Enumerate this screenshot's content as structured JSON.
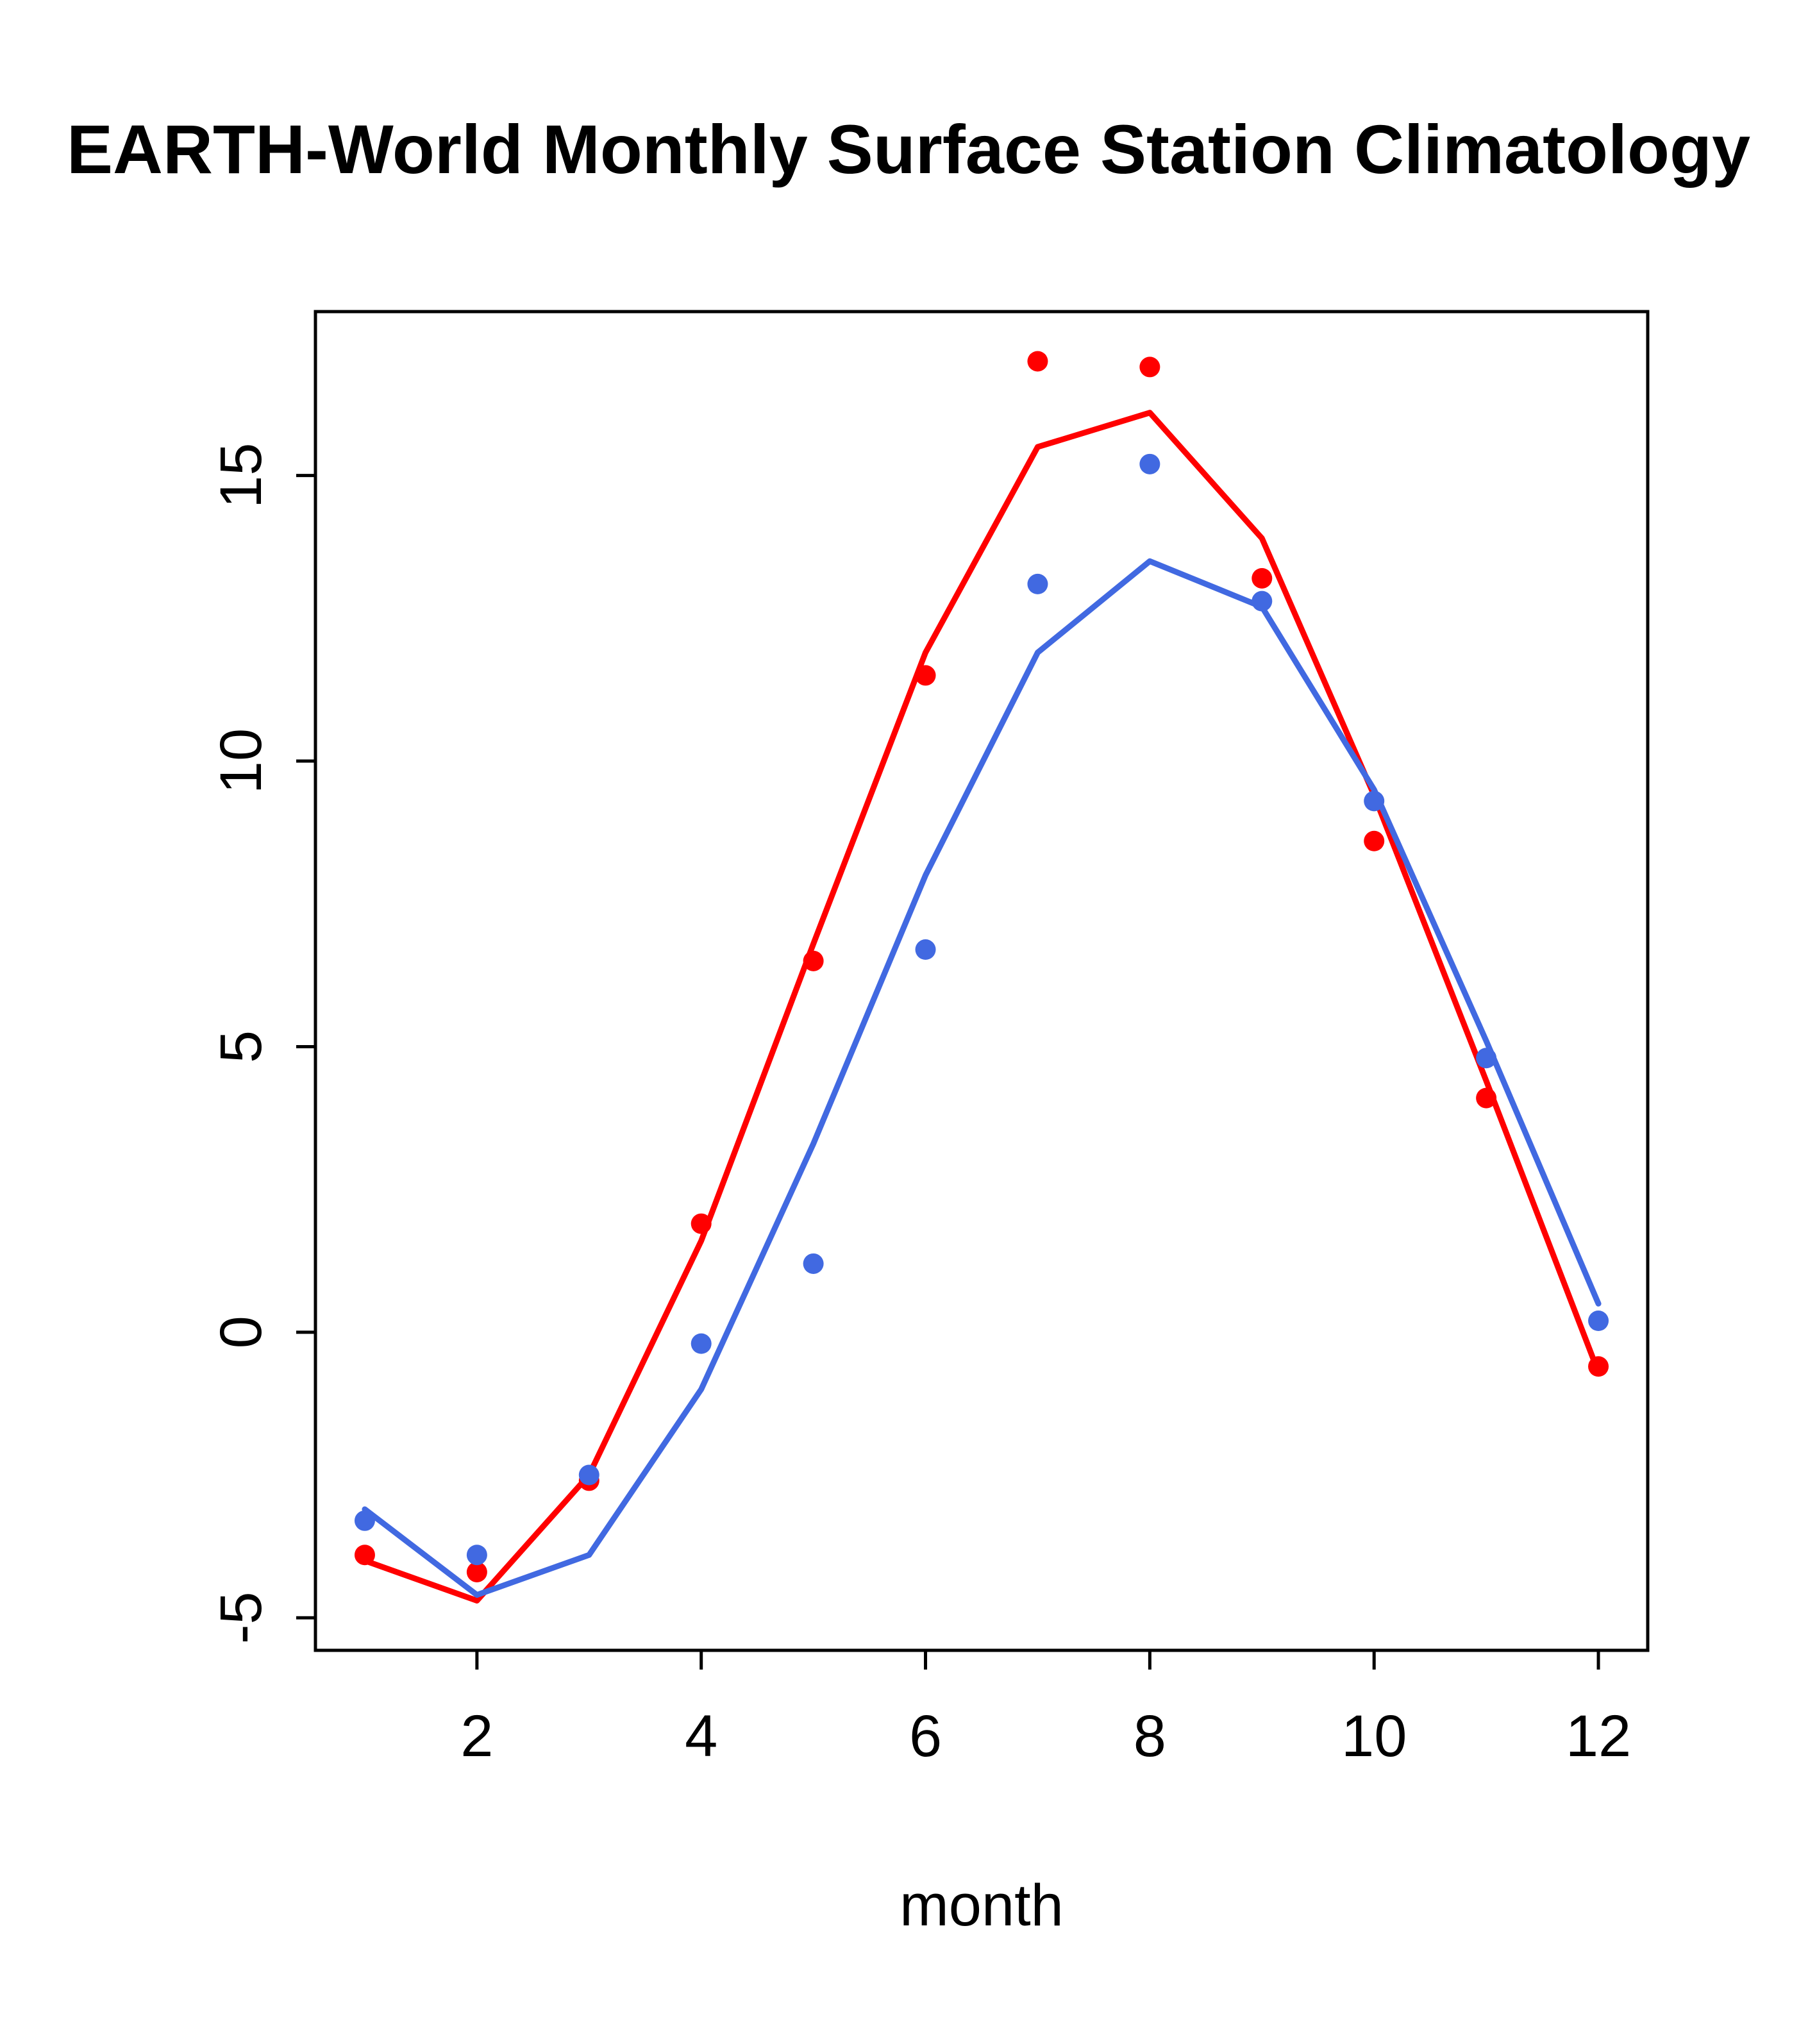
{
  "chart_data": {
    "type": "line",
    "title": "EARTH-World Monthly Surface Station Climatology",
    "xlabel": "month",
    "ylabel": "",
    "x": [
      1,
      2,
      3,
      4,
      5,
      6,
      7,
      8,
      9,
      10,
      11,
      12
    ],
    "xticks": [
      2,
      4,
      6,
      8,
      10,
      12
    ],
    "yticks": [
      -5,
      0,
      5,
      10,
      15
    ],
    "xlim": [
      0.56,
      12.44
    ],
    "ylim": [
      -5.57,
      17.87
    ],
    "grid": false,
    "legend": "none",
    "background": "#FFFFFF",
    "axis_color": "#000000",
    "series": [
      {
        "name": "red-line",
        "kind": "line",
        "color": "#FF0000",
        "values": [
          -4.0,
          -4.7,
          -2.5,
          1.6,
          6.8,
          11.9,
          15.5,
          16.1,
          13.9,
          9.4,
          4.4,
          -0.7
        ]
      },
      {
        "name": "blue-line",
        "kind": "line",
        "color": "#4169E1",
        "values": [
          -3.1,
          -4.6,
          -3.9,
          -1.0,
          3.3,
          8.0,
          11.9,
          13.5,
          12.7,
          9.5,
          5.1,
          0.5
        ]
      },
      {
        "name": "red-points",
        "kind": "scatter",
        "color": "#FF0000",
        "values": [
          -3.9,
          -4.2,
          -2.6,
          1.9,
          6.5,
          11.5,
          17.0,
          16.9,
          13.2,
          8.6,
          4.1,
          -0.6
        ]
      },
      {
        "name": "blue-points",
        "kind": "scatter",
        "color": "#4169E1",
        "values": [
          -3.3,
          -3.9,
          -2.5,
          -0.2,
          1.2,
          6.7,
          13.1,
          15.2,
          12.8,
          9.3,
          4.8,
          0.2
        ]
      }
    ]
  }
}
